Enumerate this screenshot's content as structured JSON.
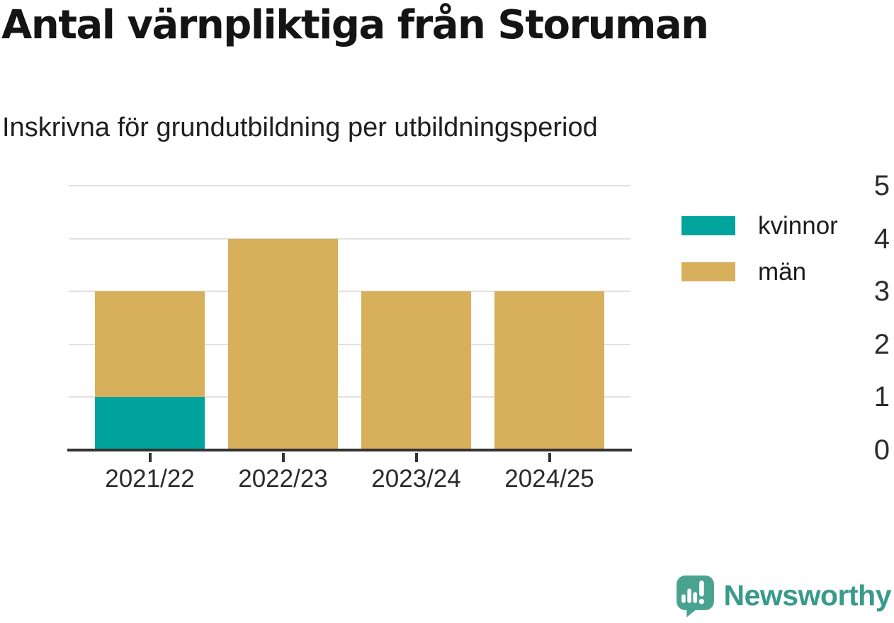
{
  "header": {
    "title": "Antal värnpliktiga från Storuman",
    "subtitle": "Inskrivna för grundutbildning per utbildningsperiod"
  },
  "chart_data": {
    "type": "bar",
    "stacked": true,
    "title": "Antal värnpliktiga från Storuman",
    "subtitle": "Inskrivna för grundutbildning per utbildningsperiod",
    "categories": [
      "2021/22",
      "2022/23",
      "2023/24",
      "2024/25"
    ],
    "series": [
      {
        "name": "kvinnor",
        "color": "#00a49c",
        "values": [
          1,
          0,
          0,
          0
        ]
      },
      {
        "name": "män",
        "color": "#d8af5b",
        "values": [
          2,
          4,
          3,
          3
        ]
      }
    ],
    "totals": [
      3,
      4,
      3,
      3
    ],
    "xlabel": "",
    "ylabel": "",
    "ylim": [
      0,
      5
    ],
    "yticks": [
      0,
      1,
      2,
      3,
      4,
      5
    ],
    "grid": true,
    "legend_position": "right"
  },
  "colors": {
    "axis": "#333333",
    "grid": "#e1e1e1",
    "tick_text": "#2b2b2b"
  },
  "branding": {
    "name": "Newsworthy",
    "wordmark_color": "#399a8c",
    "icon_color": "#4aa391",
    "icon": "newsworthy-speech-bubble-chart-icon"
  }
}
